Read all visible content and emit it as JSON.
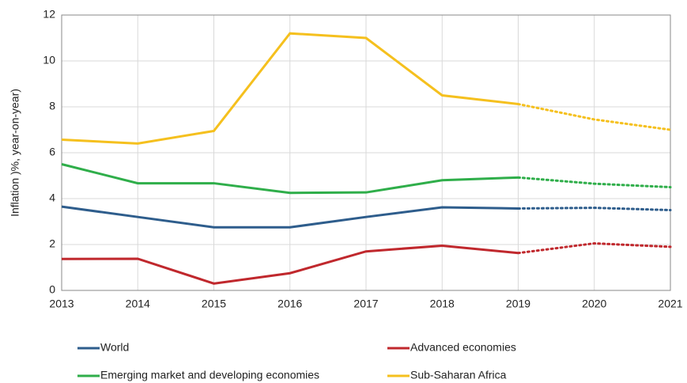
{
  "chart_data": {
    "type": "line",
    "y_label": "Inflation )%, year-on-year)",
    "categories": [
      "2013",
      "2014",
      "2015",
      "2016",
      "2017",
      "2018",
      "2019",
      "2020",
      "2021"
    ],
    "projection_from": "2019",
    "series": [
      {
        "name": "World",
        "color": "#2e5d8c",
        "values": [
          3.65,
          3.2,
          2.75,
          2.75,
          3.2,
          3.62,
          3.57,
          3.6,
          3.5
        ]
      },
      {
        "name": "Advanced economies",
        "color": "#c0282d",
        "values": [
          1.37,
          1.38,
          0.3,
          0.75,
          1.7,
          1.95,
          1.63,
          2.05,
          1.9
        ]
      },
      {
        "name": "Emerging market and developing economies",
        "color": "#2fae4a",
        "values": [
          5.5,
          4.67,
          4.67,
          4.25,
          4.27,
          4.8,
          4.92,
          4.65,
          4.5
        ]
      },
      {
        "name": "Sub-Saharan Africa",
        "color": "#f5c01e",
        "values": [
          6.57,
          6.4,
          6.95,
          11.2,
          11.0,
          8.5,
          8.12,
          7.45,
          7.0
        ]
      }
    ],
    "ylim": [
      0,
      12
    ],
    "yticks": [
      0,
      2,
      4,
      6,
      8,
      10,
      12
    ],
    "grid": true
  }
}
